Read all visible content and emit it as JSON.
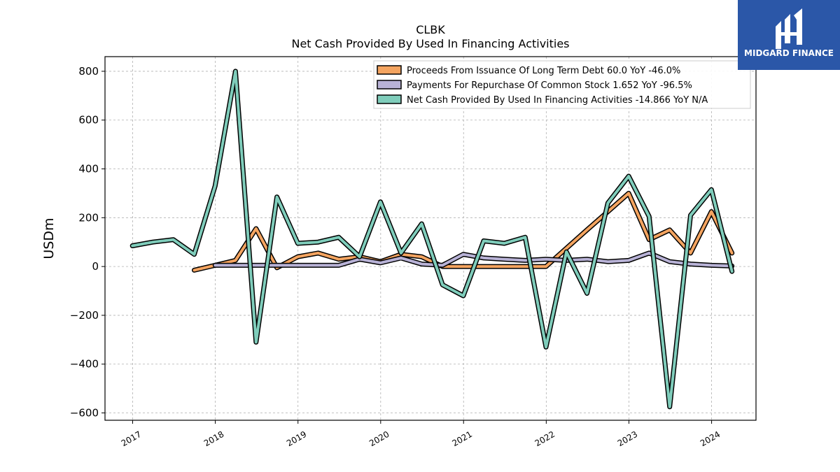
{
  "logo": {
    "text": "MIDGARD FINANCE",
    "bg_color": "#2b57a8"
  },
  "chart_data": {
    "type": "line",
    "title": "CLBK",
    "subtitle": "Net Cash Provided By Used In Financing Activities",
    "ylabel": "USDm",
    "ylim": [
      -630,
      860
    ],
    "xlim": [
      "2016-09-01",
      "2024-07-15"
    ],
    "yticks": [
      -600,
      -400,
      -200,
      0,
      200,
      400,
      600,
      800
    ],
    "ytick_labels": [
      "−600",
      "−400",
      "−200",
      "0",
      "200",
      "400",
      "600",
      "800"
    ],
    "xticks": [
      "2017-01-01",
      "2018-01-01",
      "2019-01-01",
      "2020-01-01",
      "2021-01-01",
      "2022-01-01",
      "2023-01-01",
      "2024-01-01"
    ],
    "xtick_labels": [
      "2017",
      "2018",
      "2019",
      "2020",
      "2021",
      "2022",
      "2023",
      "2024"
    ],
    "grid": true,
    "legend_position": "top-right",
    "series": [
      {
        "name": "Proceeds From Issuance Of Long Term Debt  60.0 YoY -46.0%",
        "color": "#f4a460",
        "dates": [
          "2017-09-30",
          "2017-12-31",
          "2018-03-31",
          "2018-06-30",
          "2018-09-30",
          "2018-12-31",
          "2019-03-31",
          "2019-06-30",
          "2019-09-30",
          "2019-12-31",
          "2020-03-31",
          "2020-06-30",
          "2020-09-30",
          "2020-12-31",
          "2021-03-31",
          "2021-06-30",
          "2021-09-30",
          "2021-12-31",
          "2022-03-31",
          "2022-06-30",
          "2022-09-30",
          "2022-12-31",
          "2023-03-31",
          "2023-06-30",
          "2023-09-30",
          "2023-12-31",
          "2024-03-31"
        ],
        "values": [
          -15,
          5,
          25,
          155,
          -5,
          40,
          55,
          30,
          40,
          20,
          50,
          40,
          0,
          0,
          0,
          0,
          0,
          0,
          75,
          150,
          225,
          300,
          110,
          150,
          55,
          225,
          55
        ]
      },
      {
        "name": "Payments For Repurchase Of Common Stock  1.652 YoY -96.5%",
        "color": "#b8b2d6",
        "dates": [
          "2017-12-31",
          "2018-03-31",
          "2018-06-30",
          "2018-09-30",
          "2018-12-31",
          "2019-03-31",
          "2019-06-30",
          "2019-09-30",
          "2019-12-31",
          "2020-03-31",
          "2020-06-30",
          "2020-09-30",
          "2020-12-31",
          "2021-03-31",
          "2021-06-30",
          "2021-09-30",
          "2021-12-31",
          "2022-03-31",
          "2022-06-30",
          "2022-09-30",
          "2022-12-31",
          "2023-03-31",
          "2023-06-30",
          "2023-09-30",
          "2023-12-31",
          "2024-03-31"
        ],
        "values": [
          5,
          5,
          5,
          5,
          5,
          5,
          5,
          30,
          15,
          35,
          10,
          5,
          50,
          35,
          30,
          25,
          30,
          25,
          30,
          20,
          25,
          55,
          20,
          10,
          5,
          2
        ]
      },
      {
        "name": "Net Cash Provided By Used In Financing Activities  -14.866 YoY N/A",
        "color": "#7fcdbb",
        "dates": [
          "2016-12-31",
          "2017-03-31",
          "2017-06-30",
          "2017-09-30",
          "2017-12-31",
          "2018-03-31",
          "2018-06-30",
          "2018-09-30",
          "2018-12-31",
          "2019-03-31",
          "2019-06-30",
          "2019-09-30",
          "2019-12-31",
          "2020-03-31",
          "2020-06-30",
          "2020-09-30",
          "2020-12-31",
          "2021-03-31",
          "2021-06-30",
          "2021-09-30",
          "2021-12-31",
          "2022-03-31",
          "2022-06-30",
          "2022-09-30",
          "2022-12-31",
          "2023-03-31",
          "2023-06-30",
          "2023-09-30",
          "2023-12-31",
          "2024-03-31"
        ],
        "values": [
          85,
          100,
          110,
          50,
          330,
          800,
          -310,
          285,
          95,
          100,
          120,
          40,
          265,
          55,
          175,
          -75,
          -120,
          105,
          95,
          120,
          -330,
          60,
          -110,
          260,
          370,
          205,
          -575,
          210,
          315,
          -20
        ]
      }
    ]
  }
}
